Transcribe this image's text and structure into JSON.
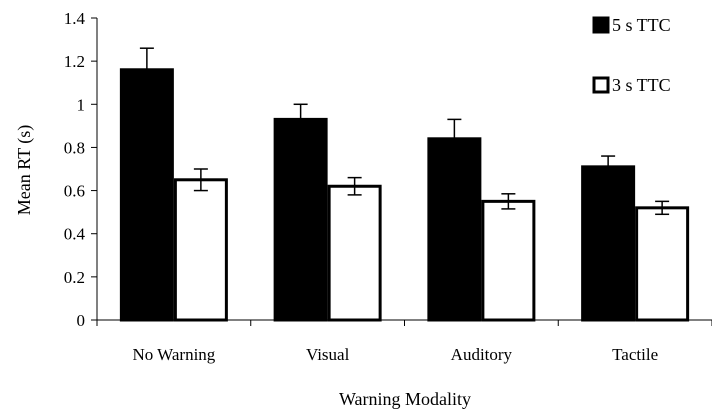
{
  "chart_data": {
    "type": "bar",
    "title": "",
    "xlabel": "Warning Modality",
    "ylabel": "Mean RT (s)",
    "categories": [
      "No Warning",
      "Visual",
      "Auditory",
      "Tactile"
    ],
    "series": [
      {
        "name": "5 s TTC",
        "values": [
          1.16,
          0.93,
          0.84,
          0.71
        ],
        "errors": [
          0.1,
          0.07,
          0.09,
          0.05
        ],
        "color": "#000000"
      },
      {
        "name": "3 s TTC",
        "values": [
          0.65,
          0.62,
          0.55,
          0.52
        ],
        "errors": [
          0.05,
          0.04,
          0.035,
          0.03
        ],
        "color": "#ffffff"
      }
    ],
    "ylim": [
      0,
      1.4
    ],
    "yticks": [
      0,
      0.2,
      0.4,
      0.6,
      0.8,
      1,
      1.2,
      1.4
    ],
    "ytick_labels": [
      "0",
      "0.2",
      "0.4",
      "0.6",
      "0.8",
      "1",
      "1.2",
      "1.4"
    ],
    "grid": false,
    "legend_position": "top-right"
  }
}
